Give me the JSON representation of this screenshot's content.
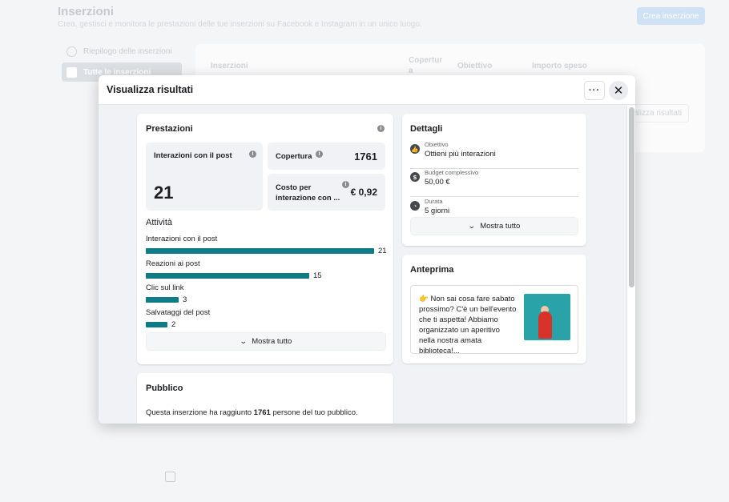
{
  "background": {
    "title": "Inserzioni",
    "subtitle": "Crea, gestisci e monitora le prestazioni delle tue inserzioni su Facebook e Instagram in un unico luogo.",
    "create_button": "Crea inserzione",
    "nav": [
      {
        "label": "Riepilogo delle inserzioni",
        "icon": "smiley-icon"
      },
      {
        "label": "Tutte le inserzioni",
        "icon": "megaphone-icon"
      }
    ],
    "columns": {
      "ads": "Inserzioni",
      "reach": "Copertur a",
      "objective": "Obiettivo",
      "spent": "Importo speso"
    },
    "row_button": "alizza risultati"
  },
  "modal": {
    "title": "Visualizza risultati",
    "more_icon": "···",
    "close_icon": "✕"
  },
  "performance": {
    "title": "Prestazioni",
    "interactions_label": "Interazioni con il post",
    "interactions_value": "21",
    "reach_label": "Copertura",
    "reach_value": "1761",
    "cost_label": "Costo per interazione con ...",
    "cost_value": "€ 0,92",
    "activity_title": "Attività",
    "activity": [
      {
        "label": "Interazioni con il post",
        "value": 21
      },
      {
        "label": "Reazioni ai post",
        "value": 15
      },
      {
        "label": "Clic sul link",
        "value": 3
      },
      {
        "label": "Salvataggi del post",
        "value": 2
      }
    ],
    "show_all": "Mostra tutto"
  },
  "details": {
    "title": "Dettagli",
    "items": [
      {
        "label": "Obiettivo",
        "value": "Ottieni più interazioni",
        "icon": "thumbs-up-icon"
      },
      {
        "label": "Budget complessivo",
        "value": "50,00 €",
        "icon": "dollar-icon"
      },
      {
        "label": "Durata",
        "value": "5 giorni",
        "icon": "clock-icon"
      }
    ],
    "show_all": "Mostra tutto"
  },
  "preview": {
    "title": "Anteprima",
    "text": "👉 Non sai cosa fare sabato prossimo? C'è un bell'evento che ti aspetta! Abbiamo organizzato un aperitivo nella nostra amata biblioteca!..."
  },
  "audience": {
    "title": "Pubblico",
    "text_before": "Questa inserzione ha raggiunto ",
    "reach": "1761",
    "text_after": " persone del tuo pubblico."
  }
}
